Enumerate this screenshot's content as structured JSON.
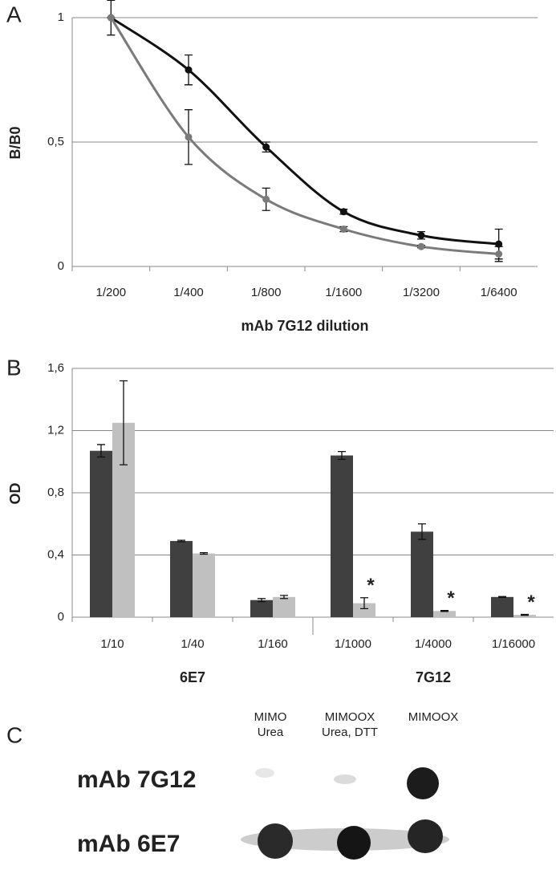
{
  "chart_data": [
    {
      "type": "line",
      "panel_label": "A",
      "ylabel": "B/B0",
      "xlabel": "mAb 7G12 dilution",
      "categories": [
        "1/200",
        "1/400",
        "1/800",
        "1/1600",
        "1/3200",
        "1/6400"
      ],
      "series": [
        {
          "color": "#111111",
          "values": [
            1,
            0.79,
            0.48,
            0.22,
            0.125,
            0.09
          ],
          "errors": [
            0,
            0.06,
            0.02,
            0.01,
            0.015,
            0.06
          ]
        },
        {
          "color": "#7a7a7a",
          "values": [
            1,
            0.52,
            0.27,
            0.15,
            0.08,
            0.05
          ],
          "errors": [
            0.07,
            0.11,
            0.045,
            0.01,
            0.005,
            0.03
          ]
        }
      ],
      "ylim": [
        0,
        1
      ],
      "yticks": [
        0,
        {
          "value": 0.5,
          "label": "0,5"
        },
        1
      ],
      "grid": true
    },
    {
      "type": "bar",
      "panel_label": "B",
      "ylabel": "OD",
      "categories": [
        "1/10",
        "1/40",
        "1/160",
        "1/1000",
        "1/4000",
        "1/16000"
      ],
      "group_labels": [
        "6E7",
        "7G12"
      ],
      "series": [
        {
          "color": "#404040",
          "values": [
            1.07,
            0.49,
            0.11,
            1.04,
            0.55,
            0.13
          ],
          "errors": [
            0.04,
            0.005,
            0.01,
            0.025,
            0.05,
            0.003
          ]
        },
        {
          "color": "#c0c0c0",
          "values": [
            1.25,
            0.41,
            0.13,
            0.09,
            0.04,
            0.015
          ],
          "errors": [
            0.27,
            0.005,
            0.01,
            0.035,
            0.003,
            0.003
          ],
          "annotations": [
            null,
            null,
            null,
            "*",
            "*",
            "*"
          ]
        }
      ],
      "ylim": [
        0,
        1.6
      ],
      "yticks": [
        0,
        {
          "value": 0.4,
          "label": "0,4"
        },
        {
          "value": 0.8,
          "label": "0,8"
        },
        {
          "value": 1.2,
          "label": "1,2"
        },
        {
          "value": 1.6,
          "label": "1,6"
        }
      ],
      "grid": true
    }
  ],
  "blot": {
    "panel_label": "C",
    "columns": [
      [
        "MIMO",
        "Urea"
      ],
      [
        "MIMOOX",
        "Urea, DTT"
      ],
      [
        "MIMOOX"
      ]
    ],
    "rows": [
      "mAb 7G12",
      "mAb 6E7"
    ]
  }
}
